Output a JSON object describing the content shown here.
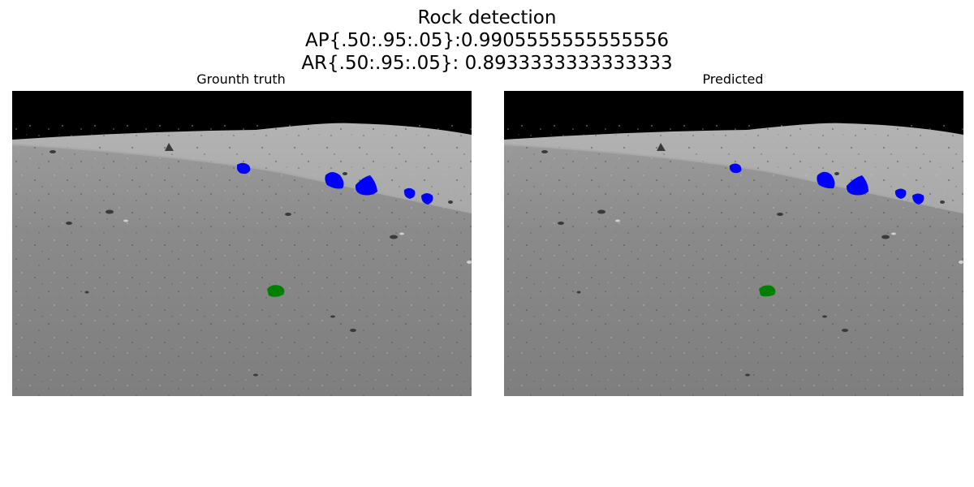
{
  "figure": {
    "title": "Rock detection",
    "ap_line": "AP{.50:.95:.05}:0.9905555555555556",
    "ar_line": "AR{.50:.95:.05}: 0.8933333333333333"
  },
  "panels": [
    {
      "title": "Grounth truth"
    },
    {
      "title": "Predicted"
    }
  ],
  "colors": {
    "sky": "#000000",
    "mask_primary": "#0000ff",
    "mask_secondary": "#008000",
    "terrain": "#8e8e8e"
  }
}
